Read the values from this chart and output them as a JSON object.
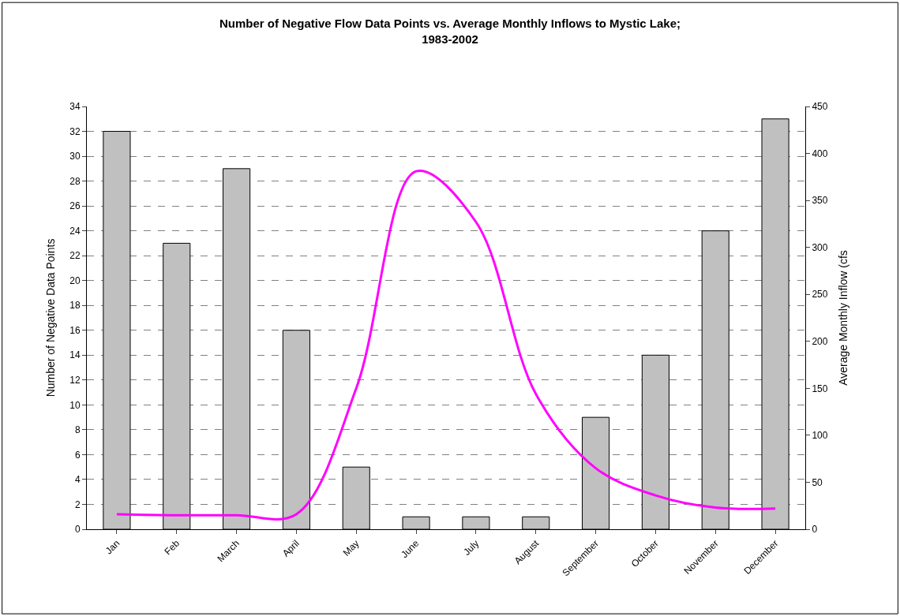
{
  "chart_data": {
    "type": "bar",
    "title": "Number of Negative Flow Data Points vs. Average Monthly Inflows to Mystic Lake;\n1983-2002",
    "ylabel": "Number of Negative Data Points",
    "y2label": "Average Monthly Inflow (cfs",
    "categories": [
      "Jan",
      "Feb",
      "March",
      "April",
      "May",
      "June",
      "July",
      "August",
      "September",
      "October",
      "November",
      "December"
    ],
    "series": [
      {
        "color": "#c0c0c0",
        "values": [
          32,
          23,
          29,
          16,
          5,
          1,
          1,
          1,
          9,
          14,
          24,
          33
        ]
      },
      {
        "type": "line",
        "axis": "y2",
        "color": "#ff00ff",
        "line_style": "solid",
        "values": [
          16,
          15,
          15,
          16,
          150,
          381,
          327,
          144,
          65,
          36,
          23,
          22
        ]
      }
    ],
    "ylim": [
      0,
      34
    ],
    "yticks": [
      0,
      2,
      4,
      6,
      8,
      10,
      12,
      14,
      16,
      18,
      20,
      22,
      24,
      26,
      28,
      30,
      32,
      34
    ],
    "y2lim": [
      0,
      450
    ],
    "y2ticks": [
      0,
      50,
      100,
      150,
      200,
      250,
      300,
      350,
      400,
      450
    ],
    "grid": "y",
    "marker": "none"
  }
}
